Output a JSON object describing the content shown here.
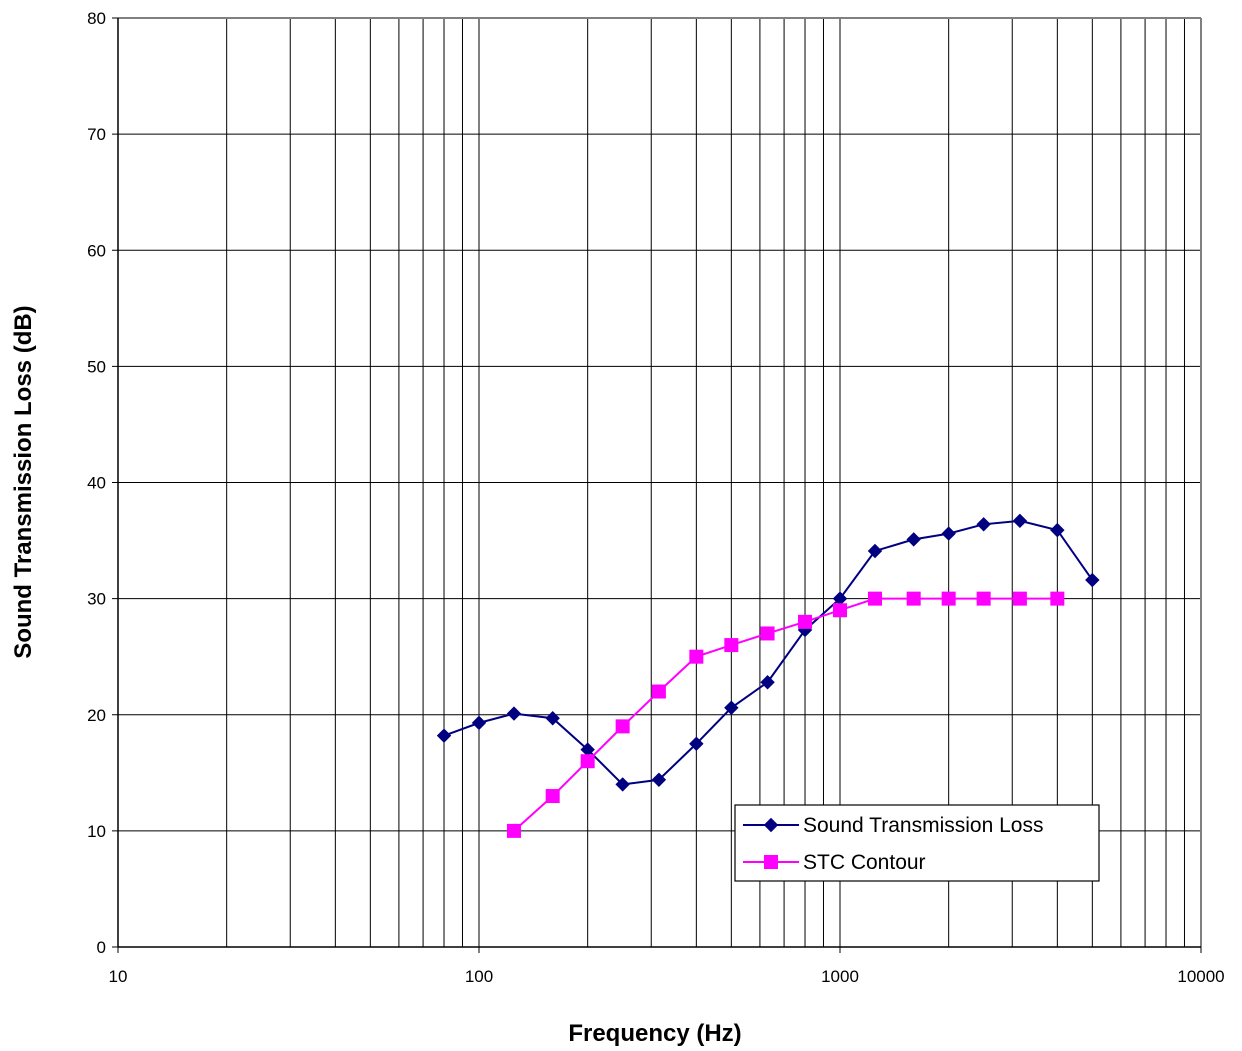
{
  "chart_data": {
    "type": "line",
    "xlabel": "Frequency (Hz)",
    "ylabel": "Sound Transmission Loss (dB)",
    "x_scale": "log",
    "xlim": [
      10,
      10000
    ],
    "ylim": [
      0,
      80
    ],
    "x_ticks": [
      10,
      100,
      1000,
      10000
    ],
    "y_ticks": [
      0,
      10,
      20,
      30,
      40,
      50,
      60,
      70,
      80
    ],
    "grid": true,
    "legend_position": "bottom-right",
    "series": [
      {
        "name": "Sound Transmission Loss",
        "color": "#000080",
        "marker": "diamond",
        "x": [
          80,
          100,
          125,
          160,
          200,
          250,
          315,
          400,
          500,
          630,
          800,
          1000,
          1250,
          1600,
          2000,
          2500,
          3150,
          4000,
          5000
        ],
        "y": [
          18.2,
          19.3,
          20.1,
          19.7,
          17.0,
          14.0,
          14.4,
          17.5,
          20.6,
          22.8,
          27.3,
          30.0,
          34.1,
          35.1,
          35.6,
          36.4,
          36.7,
          35.9,
          31.6
        ]
      },
      {
        "name": "STC Contour",
        "color": "#ff00ff",
        "marker": "square",
        "x": [
          125,
          160,
          200,
          250,
          315,
          400,
          500,
          630,
          800,
          1000,
          1250,
          1600,
          2000,
          2500,
          3150,
          4000
        ],
        "y": [
          10,
          13,
          16,
          19,
          22,
          25,
          26,
          27,
          28,
          29,
          30,
          30,
          30,
          30,
          30,
          30
        ]
      }
    ]
  }
}
